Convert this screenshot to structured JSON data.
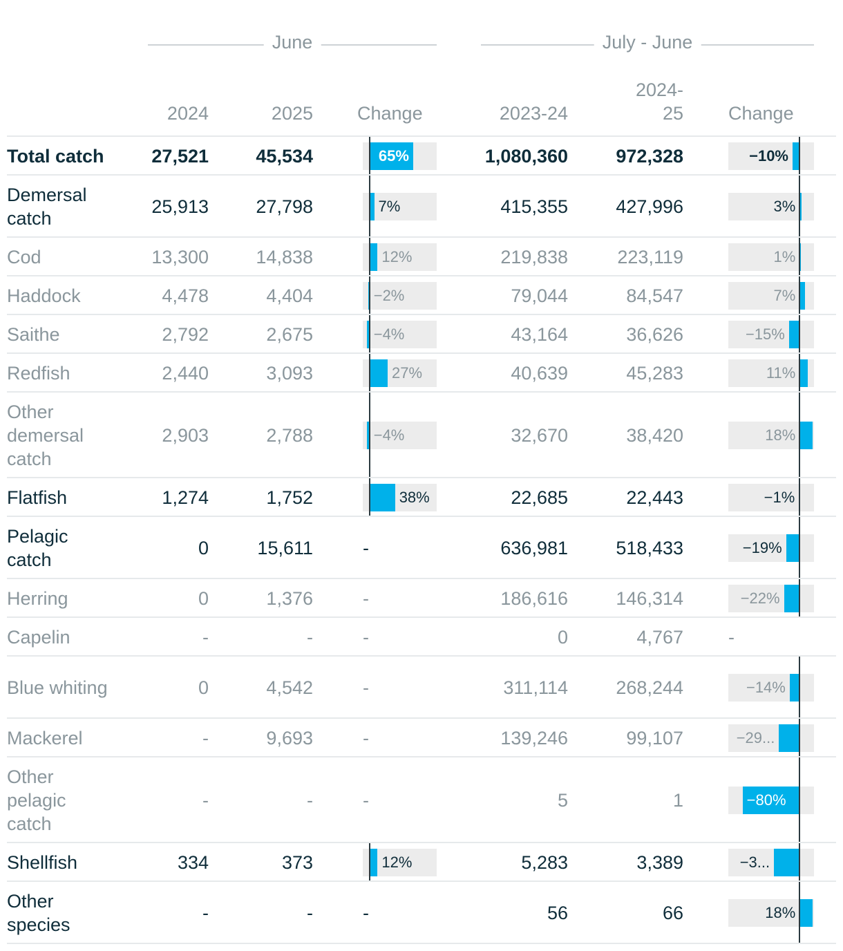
{
  "chart_data": {
    "type": "table",
    "groups": [
      {
        "title": "June",
        "columns": [
          "2024",
          "2025",
          "Change"
        ]
      },
      {
        "title": "July - June",
        "columns": [
          "2023-24",
          "2024-25",
          "Change"
        ]
      }
    ],
    "header": {
      "june_2024": "2024",
      "june_2025": "2025",
      "june_change": "Change",
      "jj_2023": "2023-24",
      "jj_2024_line1": "2024-",
      "jj_2024_line2": "25",
      "jj_change": "Change"
    },
    "change_scale": {
      "june_min": -10,
      "june_max": 100,
      "jj_min": -100,
      "jj_max": 20
    },
    "colors": {
      "bar": "#00b1ea",
      "bar_track": "#ececec",
      "axis": "#2b3a40",
      "bold_text": "#0f2d3a",
      "muted_text": "#8a969c"
    },
    "rows": [
      {
        "label": "Total catch",
        "style": "bold",
        "june_2024": "27,521",
        "june_2025": "45,534",
        "june_change": 65,
        "june_change_label": "65%",
        "jj_2023": "1,080,360",
        "jj_2024": "972,328",
        "jj_change": -10,
        "jj_change_label": "−10%"
      },
      {
        "label": "Demersal catch",
        "style": "strong",
        "june_2024": "25,913",
        "june_2025": "27,798",
        "june_change": 7,
        "june_change_label": "7%",
        "jj_2023": "415,355",
        "jj_2024": "427,996",
        "jj_change": 3,
        "jj_change_label": "3%"
      },
      {
        "label": "Cod",
        "style": "muted",
        "june_2024": "13,300",
        "june_2025": "14,838",
        "june_change": 12,
        "june_change_label": "12%",
        "jj_2023": "219,838",
        "jj_2024": "223,119",
        "jj_change": 1,
        "jj_change_label": "1%"
      },
      {
        "label": "Haddock",
        "style": "muted",
        "june_2024": "4,478",
        "june_2025": "4,404",
        "june_change": -2,
        "june_change_label": "−2%",
        "jj_2023": "79,044",
        "jj_2024": "84,547",
        "jj_change": 7,
        "jj_change_label": "7%"
      },
      {
        "label": "Saithe",
        "style": "muted",
        "june_2024": "2,792",
        "june_2025": "2,675",
        "june_change": -4,
        "june_change_label": "−4%",
        "jj_2023": "43,164",
        "jj_2024": "36,626",
        "jj_change": -15,
        "jj_change_label": "−15%"
      },
      {
        "label": "Redfish",
        "style": "muted",
        "june_2024": "2,440",
        "june_2025": "3,093",
        "june_change": 27,
        "june_change_label": "27%",
        "jj_2023": "40,639",
        "jj_2024": "45,283",
        "jj_change": 11,
        "jj_change_label": "11%"
      },
      {
        "label": "Other demersal catch",
        "style": "muted",
        "june_2024": "2,903",
        "june_2025": "2,788",
        "june_change": -4,
        "june_change_label": "−4%",
        "jj_2023": "32,670",
        "jj_2024": "38,420",
        "jj_change": 18,
        "jj_change_label": "18%"
      },
      {
        "label": "Flatfish",
        "style": "strong",
        "june_2024": "1,274",
        "june_2025": "1,752",
        "june_change": 38,
        "june_change_label": "38%",
        "jj_2023": "22,685",
        "jj_2024": "22,443",
        "jj_change": -1,
        "jj_change_label": "−1%"
      },
      {
        "label": "Pelagic catch",
        "style": "strong",
        "june_2024": "0",
        "june_2025": "15,611",
        "june_change": null,
        "june_change_label": "-",
        "jj_2023": "636,981",
        "jj_2024": "518,433",
        "jj_change": -19,
        "jj_change_label": "−19%"
      },
      {
        "label": "Herring",
        "style": "muted",
        "june_2024": "0",
        "june_2025": "1,376",
        "june_change": null,
        "june_change_label": "-",
        "jj_2023": "186,616",
        "jj_2024": "146,314",
        "jj_change": -22,
        "jj_change_label": "−22%"
      },
      {
        "label": "Capelin",
        "style": "muted",
        "june_2024": "-",
        "june_2025": "-",
        "june_change": null,
        "june_change_label": "-",
        "jj_2023": "0",
        "jj_2024": "4,767",
        "jj_change": null,
        "jj_change_label": "-"
      },
      {
        "label": "Blue whiting",
        "style": "muted",
        "june_2024": "0",
        "june_2025": "4,542",
        "june_change": null,
        "june_change_label": "-",
        "jj_2023": "311,114",
        "jj_2024": "268,244",
        "jj_change": -14,
        "jj_change_label": "−14%"
      },
      {
        "label": "Mackerel",
        "style": "muted",
        "june_2024": "-",
        "june_2025": "9,693",
        "june_change": null,
        "june_change_label": "-",
        "jj_2023": "139,246",
        "jj_2024": "99,107",
        "jj_change": -29,
        "jj_change_label": "−29..."
      },
      {
        "label": "Other pelagic catch",
        "style": "muted",
        "june_2024": "-",
        "june_2025": "-",
        "june_change": null,
        "june_change_label": "-",
        "jj_2023": "5",
        "jj_2024": "1",
        "jj_change": -80,
        "jj_change_label": "−80%"
      },
      {
        "label": "Shellfish",
        "style": "strong",
        "june_2024": "334",
        "june_2025": "373",
        "june_change": 12,
        "june_change_label": "12%",
        "jj_2023": "5,283",
        "jj_2024": "3,389",
        "jj_change": -36,
        "jj_change_label": "−3..."
      },
      {
        "label": "Other species",
        "style": "strong",
        "june_2024": "-",
        "june_2025": "-",
        "june_change": null,
        "june_change_label": "-",
        "jj_2023": "56",
        "jj_2024": "66",
        "jj_change": 18,
        "jj_change_label": "18%"
      }
    ]
  }
}
